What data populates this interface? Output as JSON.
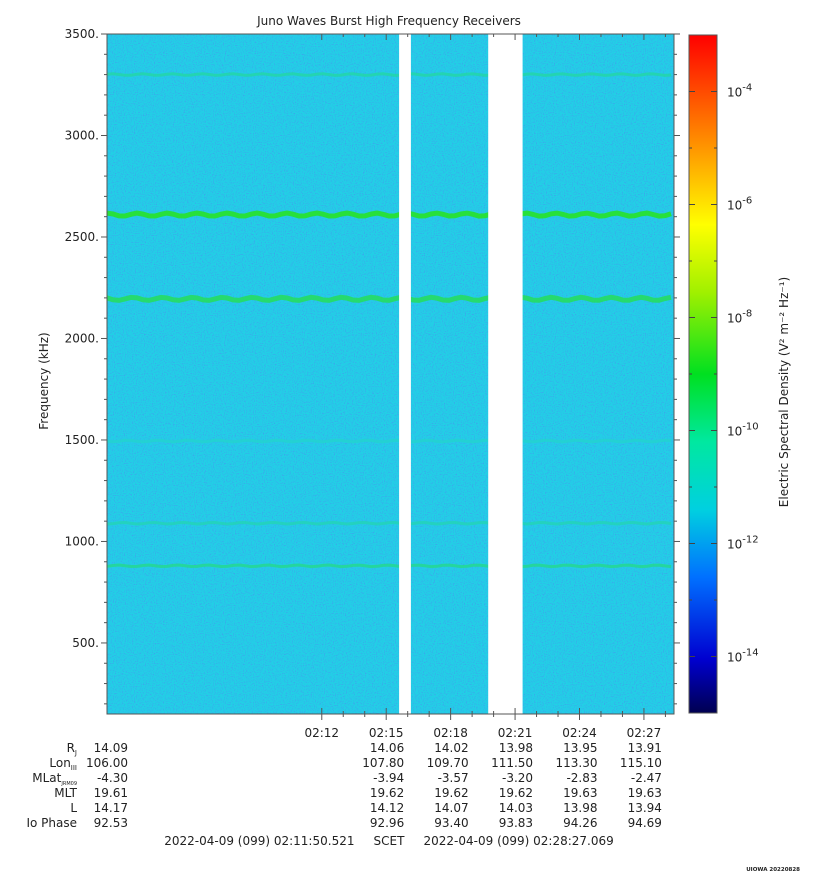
{
  "chart_data": {
    "type": "heatmap",
    "title": "Juno Waves Burst High Frequency Receivers",
    "ylabel": "Frequency (kHz)",
    "colorbar_label": "Electric Spectral Density (V² m⁻² Hz⁻¹)",
    "ylim": [
      150,
      3500
    ],
    "y_ticks": [
      500,
      1000,
      1500,
      2000,
      2500,
      3000,
      3500
    ],
    "y_tick_labels": [
      "500.",
      "1000.",
      "1500.",
      "2000.",
      "2500.",
      "3000.",
      "3500."
    ],
    "x_range_minutes": [
      2.0,
      28.4
    ],
    "x_ticks": [
      {
        "minute": 12,
        "label": "02:12"
      },
      {
        "minute": 15,
        "label": "02:15"
      },
      {
        "minute": 18,
        "label": "02:18"
      },
      {
        "minute": 21,
        "label": "02:21"
      },
      {
        "minute": 24,
        "label": "02:24"
      },
      {
        "minute": 27,
        "label": "02:27"
      }
    ],
    "data_gaps_minutes": [
      [
        15.6,
        16.15
      ],
      [
        19.75,
        21.35
      ]
    ],
    "background_level_log10": -11.6,
    "emission_lines": [
      {
        "freq_khz": 3300,
        "level_log10": -10.8
      },
      {
        "freq_khz": 2610,
        "level_log10": -9.0
      },
      {
        "freq_khz": 2195,
        "level_log10": -9.8
      },
      {
        "freq_khz": 1495,
        "level_log10": -11.3
      },
      {
        "freq_khz": 1090,
        "level_log10": -11.0
      },
      {
        "freq_khz": 880,
        "level_log10": -10.5
      }
    ],
    "colorbar": {
      "scale": "log",
      "range_log10": [
        -15,
        -3
      ],
      "tick_exponents": [
        -4,
        -6,
        -8,
        -10,
        -12,
        -14
      ],
      "tick_base": "10"
    },
    "ephemeris": {
      "labels": [
        "R",
        "Lon",
        "MLat",
        "MLT",
        "L",
        "Io Phase"
      ],
      "label_subscripts": [
        "J",
        "III",
        "JRM09",
        "",
        "",
        ""
      ],
      "columns": [
        [
          "14.09",
          "106.00",
          "-4.30",
          "19.61",
          "14.17",
          "92.53"
        ],
        [
          "14.06",
          "107.80",
          "-3.94",
          "19.62",
          "14.12",
          "92.96"
        ],
        [
          "14.02",
          "109.70",
          "-3.57",
          "19.62",
          "14.07",
          "93.40"
        ],
        [
          "13.98",
          "111.50",
          "-3.20",
          "19.62",
          "14.03",
          "93.83"
        ],
        [
          "13.95",
          "113.30",
          "-2.83",
          "19.63",
          "13.98",
          "94.26"
        ],
        [
          "13.91",
          "115.10",
          "-2.47",
          "19.63",
          "13.94",
          "94.69"
        ]
      ]
    },
    "time_range_text": "2022-04-09 (099) 02:11:50.521     SCET     2022-04-09 (099) 02:28:27.069",
    "footer_tag": "UIOWA 20220828"
  }
}
